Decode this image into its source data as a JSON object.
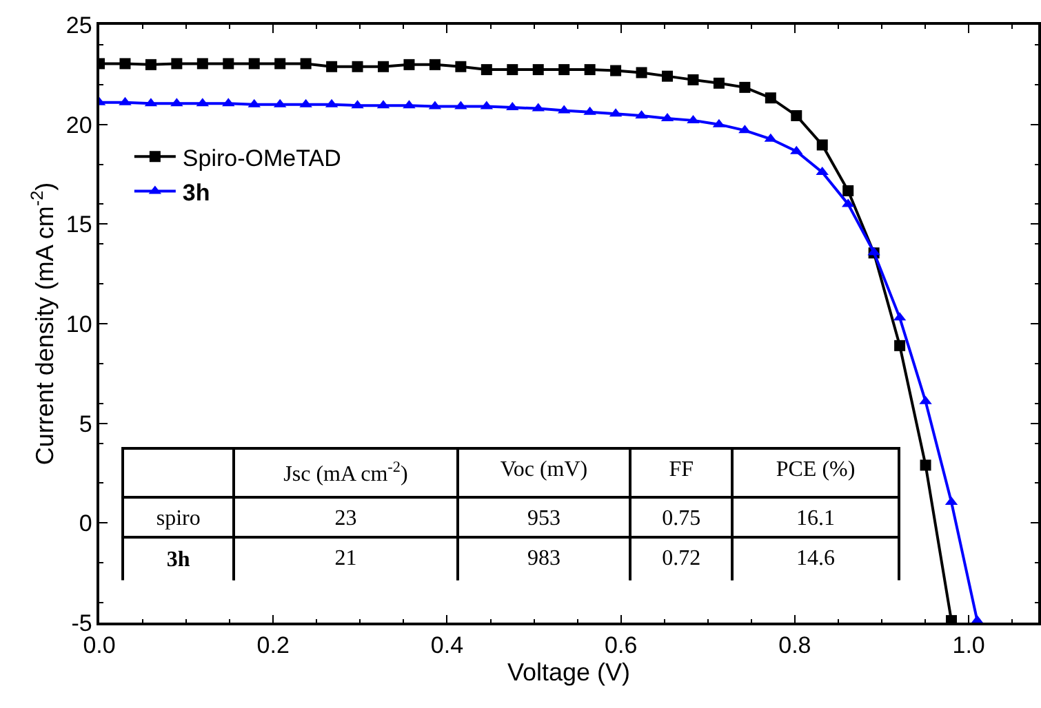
{
  "chart_data": {
    "type": "line",
    "xlabel": "Voltage (V)",
    "ylabel": "Current density (mA cm$^{-2}$)",
    "xlim": [
      0,
      1.08
    ],
    "xticks": [
      {
        "value": 0,
        "label": "0.0"
      },
      0.2,
      0.4,
      0.6,
      0.8,
      {
        "value": 1,
        "label": "1.0"
      }
    ],
    "ylim": [
      -5,
      25
    ],
    "yticks": [
      -5,
      0,
      5,
      10,
      15,
      20,
      25
    ],
    "legend": "top left",
    "series": [
      {
        "name": "Spiro-OMeTAD",
        "color": "#000000",
        "marker": "square",
        "x": [
          0,
          0.0297,
          0.0594,
          0.0891,
          0.1188,
          0.1485,
          0.1782,
          0.2079,
          0.2376,
          0.2673,
          0.297,
          0.3267,
          0.3564,
          0.3861,
          0.4158,
          0.4455,
          0.4752,
          0.5049,
          0.5346,
          0.5643,
          0.594,
          0.6237,
          0.6534,
          0.6831,
          0.7128,
          0.7425,
          0.7722,
          0.8019,
          0.8316,
          0.8613,
          0.891,
          0.9207,
          0.9504,
          0.9801
        ],
        "values": [
          23.05,
          23.05,
          23.0,
          23.05,
          23.05,
          23.05,
          23.05,
          23.05,
          23.05,
          22.9,
          22.9,
          22.9,
          23.0,
          23.0,
          22.9,
          22.75,
          22.75,
          22.75,
          22.75,
          22.75,
          22.7,
          22.6,
          22.42,
          22.24,
          22.07,
          21.86,
          21.33,
          20.44,
          18.97,
          16.67,
          13.55,
          8.9,
          2.9,
          -4.9
        ]
      },
      {
        "name": "3h",
        "color": "#0000ff",
        "marker": "triangle",
        "x": [
          0,
          0.0297,
          0.0594,
          0.0891,
          0.1188,
          0.1485,
          0.1782,
          0.2079,
          0.2376,
          0.2673,
          0.297,
          0.3267,
          0.3564,
          0.3861,
          0.4158,
          0.4455,
          0.4752,
          0.5049,
          0.5346,
          0.5643,
          0.594,
          0.6237,
          0.6534,
          0.6831,
          0.7128,
          0.7425,
          0.7722,
          0.8019,
          0.8316,
          0.8613,
          0.891,
          0.9207,
          0.9504,
          0.9801,
          1.0098
        ],
        "values": [
          21.1,
          21.1,
          21.05,
          21.05,
          21.05,
          21.05,
          21.0,
          21.0,
          21.0,
          21.0,
          20.95,
          20.95,
          20.95,
          20.9,
          20.9,
          20.9,
          20.85,
          20.8,
          20.7,
          20.62,
          20.53,
          20.44,
          20.3,
          20.2,
          20.0,
          19.7,
          19.27,
          18.65,
          17.6,
          16.0,
          13.58,
          10.3,
          6.1,
          1.05,
          -4.9
        ]
      }
    ],
    "annotations": [
      "Jsc (mA cm$^{-2}$)",
      "Voc (mV)",
      "FF",
      "PCE (%)",
      "spiro",
      "23",
      "953",
      "0.75",
      "16.1",
      "3h",
      "21",
      "983",
      "0.72",
      "14.6"
    ]
  }
}
